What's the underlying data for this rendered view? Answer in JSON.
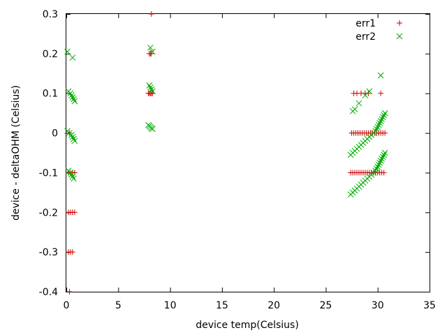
{
  "chart_data": {
    "type": "scatter",
    "xlabel": "device temp(Celsius)",
    "ylabel": "device - deltaOHM (Celsius)",
    "xlim": [
      0,
      35
    ],
    "ylim": [
      -0.4,
      0.3
    ],
    "x_ticks": [
      0,
      5,
      10,
      15,
      20,
      25,
      30,
      35
    ],
    "y_ticks": [
      -0.4,
      -0.3,
      -0.2,
      -0.1,
      0,
      0.1,
      0.2,
      0.3
    ],
    "grid": false,
    "legend_position": "top-right",
    "series": [
      {
        "name": "err1",
        "marker": "plus",
        "color": "#cc0000",
        "points": [
          [
            0.3,
            -0.4
          ],
          [
            0.2,
            -0.3
          ],
          [
            0.4,
            -0.3
          ],
          [
            0.6,
            -0.3
          ],
          [
            0.2,
            -0.2
          ],
          [
            0.4,
            -0.2
          ],
          [
            0.6,
            -0.2
          ],
          [
            0.8,
            -0.2
          ],
          [
            0.2,
            -0.1
          ],
          [
            0.4,
            -0.1
          ],
          [
            0.6,
            -0.1
          ],
          [
            0.8,
            -0.1
          ],
          [
            0.3,
            0.0
          ],
          [
            7.9,
            0.1
          ],
          [
            8.0,
            0.1
          ],
          [
            8.1,
            0.1
          ],
          [
            8.2,
            0.1
          ],
          [
            8.3,
            0.1
          ],
          [
            8.0,
            0.2
          ],
          [
            8.1,
            0.2
          ],
          [
            8.2,
            0.2
          ],
          [
            8.2,
            0.3
          ],
          [
            27.5,
            0.0
          ],
          [
            27.7,
            0.0
          ],
          [
            27.9,
            0.0
          ],
          [
            28.1,
            0.0
          ],
          [
            28.3,
            0.0
          ],
          [
            28.5,
            0.0
          ],
          [
            28.7,
            0.0
          ],
          [
            28.9,
            0.0
          ],
          [
            29.1,
            0.0
          ],
          [
            29.3,
            0.0
          ],
          [
            29.5,
            0.0
          ],
          [
            29.7,
            0.0
          ],
          [
            29.9,
            0.0
          ],
          [
            30.1,
            0.0
          ],
          [
            30.3,
            0.0
          ],
          [
            30.5,
            0.0
          ],
          [
            30.7,
            0.0
          ],
          [
            27.4,
            -0.1
          ],
          [
            27.6,
            -0.1
          ],
          [
            27.8,
            -0.1
          ],
          [
            28.0,
            -0.1
          ],
          [
            28.2,
            -0.1
          ],
          [
            28.4,
            -0.1
          ],
          [
            28.6,
            -0.1
          ],
          [
            28.8,
            -0.1
          ],
          [
            29.0,
            -0.1
          ],
          [
            29.2,
            -0.1
          ],
          [
            29.4,
            -0.1
          ],
          [
            29.6,
            -0.1
          ],
          [
            29.8,
            -0.1
          ],
          [
            30.0,
            -0.1
          ],
          [
            30.2,
            -0.1
          ],
          [
            30.4,
            -0.1
          ],
          [
            30.6,
            -0.1
          ],
          [
            27.7,
            0.1
          ],
          [
            28.0,
            0.1
          ],
          [
            28.4,
            0.1
          ],
          [
            28.8,
            0.1
          ],
          [
            29.1,
            0.1
          ],
          [
            30.3,
            0.1
          ]
        ]
      },
      {
        "name": "err2",
        "marker": "cross",
        "color": "#00aa00",
        "points": [
          [
            0.1,
            0.205
          ],
          [
            0.6,
            0.19
          ],
          [
            0.2,
            0.105
          ],
          [
            0.4,
            0.1
          ],
          [
            0.5,
            0.095
          ],
          [
            0.6,
            0.09
          ],
          [
            0.7,
            0.085
          ],
          [
            0.8,
            0.08
          ],
          [
            0.1,
            0.005
          ],
          [
            0.3,
            0.0
          ],
          [
            0.5,
            -0.005
          ],
          [
            0.6,
            -0.01
          ],
          [
            0.7,
            -0.015
          ],
          [
            0.8,
            -0.02
          ],
          [
            0.2,
            -0.095
          ],
          [
            0.4,
            -0.1
          ],
          [
            0.5,
            -0.105
          ],
          [
            0.6,
            -0.11
          ],
          [
            0.7,
            -0.115
          ],
          [
            8.1,
            0.215
          ],
          [
            8.3,
            0.205
          ],
          [
            8.0,
            0.12
          ],
          [
            8.1,
            0.115
          ],
          [
            8.2,
            0.11
          ],
          [
            8.3,
            0.105
          ],
          [
            7.9,
            0.02
          ],
          [
            8.0,
            0.018
          ],
          [
            8.1,
            0.015
          ],
          [
            8.2,
            0.012
          ],
          [
            8.3,
            0.01
          ],
          [
            27.4,
            -0.055
          ],
          [
            27.6,
            -0.05
          ],
          [
            27.8,
            -0.045
          ],
          [
            28.0,
            -0.04
          ],
          [
            28.2,
            -0.035
          ],
          [
            28.4,
            -0.03
          ],
          [
            28.6,
            -0.025
          ],
          [
            28.8,
            -0.02
          ],
          [
            29.0,
            -0.015
          ],
          [
            29.2,
            -0.01
          ],
          [
            29.4,
            -0.005
          ],
          [
            29.6,
            0.0
          ],
          [
            29.8,
            0.005
          ],
          [
            29.9,
            0.01
          ],
          [
            30.0,
            0.015
          ],
          [
            30.1,
            0.02
          ],
          [
            30.2,
            0.025
          ],
          [
            30.3,
            0.03
          ],
          [
            30.4,
            0.035
          ],
          [
            30.5,
            0.04
          ],
          [
            30.6,
            0.045
          ],
          [
            30.7,
            0.05
          ],
          [
            27.4,
            -0.155
          ],
          [
            27.6,
            -0.15
          ],
          [
            27.8,
            -0.145
          ],
          [
            28.0,
            -0.14
          ],
          [
            28.2,
            -0.135
          ],
          [
            28.4,
            -0.13
          ],
          [
            28.6,
            -0.125
          ],
          [
            28.8,
            -0.12
          ],
          [
            29.0,
            -0.115
          ],
          [
            29.2,
            -0.11
          ],
          [
            29.4,
            -0.105
          ],
          [
            29.6,
            -0.1
          ],
          [
            29.8,
            -0.095
          ],
          [
            29.9,
            -0.09
          ],
          [
            30.0,
            -0.085
          ],
          [
            30.1,
            -0.08
          ],
          [
            30.2,
            -0.075
          ],
          [
            30.3,
            -0.07
          ],
          [
            30.4,
            -0.065
          ],
          [
            30.5,
            -0.06
          ],
          [
            30.6,
            -0.055
          ],
          [
            30.7,
            -0.05
          ],
          [
            27.6,
            0.055
          ],
          [
            27.8,
            0.06
          ],
          [
            28.2,
            0.075
          ],
          [
            28.8,
            0.095
          ],
          [
            29.2,
            0.105
          ],
          [
            30.3,
            0.145
          ]
        ]
      }
    ]
  }
}
